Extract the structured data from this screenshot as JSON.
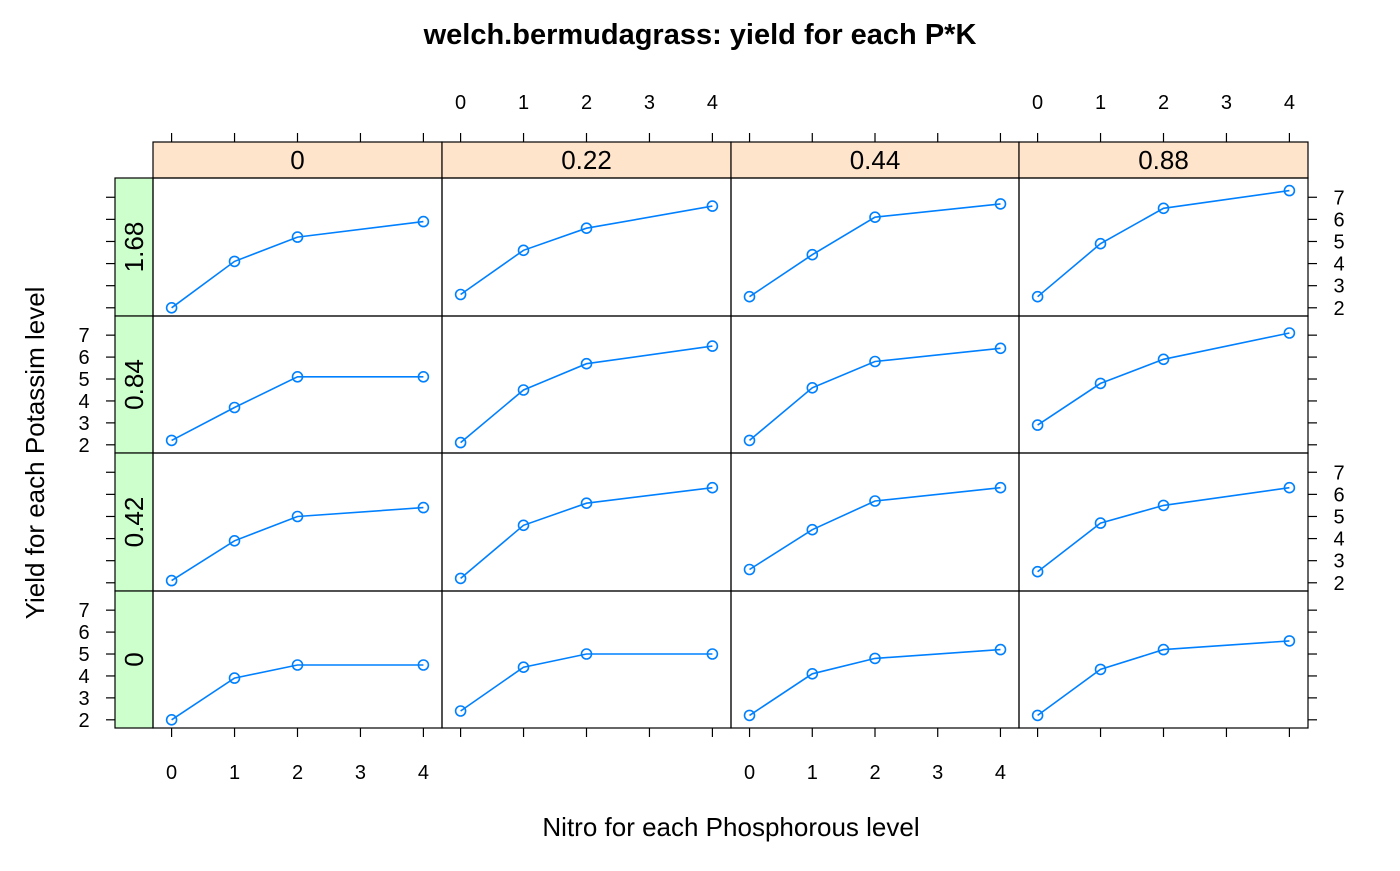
{
  "chart_data": {
    "type": "line",
    "title": "welch.bermudagrass: yield for each P*K",
    "xlabel": "Nitro for each Phosphorous level",
    "ylabel": "Yield for each Potassim level",
    "x": [
      0,
      1,
      2,
      3,
      4
    ],
    "x_ticks": [
      "0",
      "1",
      "2",
      "3",
      "4"
    ],
    "xlim": [
      -0.2,
      4.2
    ],
    "y_ticks": [
      "2",
      "3",
      "4",
      "5",
      "6",
      "7"
    ],
    "ylim": [
      1.9,
      7.6
    ],
    "phosphorous_levels": [
      "0",
      "0.22",
      "0.44",
      "0.88"
    ],
    "potassium_levels": [
      "1.68",
      "0.84",
      "0.42",
      "0"
    ],
    "strip_top_color": "#ffe4cc",
    "strip_side_color": "#ccffcc",
    "line_color": "#0080ff",
    "panels": [
      {
        "potassium": "1.68",
        "phosphorous": "0",
        "x": [
          0,
          1,
          2,
          4
        ],
        "y": [
          2.0,
          4.1,
          5.2,
          5.9
        ]
      },
      {
        "potassium": "1.68",
        "phosphorous": "0.22",
        "x": [
          0,
          1,
          2,
          4
        ],
        "y": [
          2.6,
          4.6,
          5.6,
          6.6
        ]
      },
      {
        "potassium": "1.68",
        "phosphorous": "0.44",
        "x": [
          0,
          1,
          2,
          4
        ],
        "y": [
          2.5,
          4.4,
          6.1,
          6.7
        ]
      },
      {
        "potassium": "1.68",
        "phosphorous": "0.88",
        "x": [
          0,
          1,
          2,
          4
        ],
        "y": [
          2.5,
          4.9,
          6.5,
          7.3
        ]
      },
      {
        "potassium": "0.84",
        "phosphorous": "0",
        "x": [
          0,
          1,
          2,
          4
        ],
        "y": [
          2.2,
          3.7,
          5.1,
          5.1
        ]
      },
      {
        "potassium": "0.84",
        "phosphorous": "0.22",
        "x": [
          0,
          1,
          2,
          4
        ],
        "y": [
          2.1,
          4.5,
          5.7,
          6.5
        ]
      },
      {
        "potassium": "0.84",
        "phosphorous": "0.44",
        "x": [
          0,
          1,
          2,
          4
        ],
        "y": [
          2.2,
          4.6,
          5.8,
          6.4
        ]
      },
      {
        "potassium": "0.84",
        "phosphorous": "0.88",
        "x": [
          0,
          1,
          2,
          4
        ],
        "y": [
          2.9,
          4.8,
          5.9,
          7.1
        ]
      },
      {
        "potassium": "0.42",
        "phosphorous": "0",
        "x": [
          0,
          1,
          2,
          4
        ],
        "y": [
          2.1,
          3.9,
          5.0,
          5.4
        ]
      },
      {
        "potassium": "0.42",
        "phosphorous": "0.22",
        "x": [
          0,
          1,
          2,
          4
        ],
        "y": [
          2.2,
          4.6,
          5.6,
          6.3
        ]
      },
      {
        "potassium": "0.42",
        "phosphorous": "0.44",
        "x": [
          0,
          1,
          2,
          4
        ],
        "y": [
          2.6,
          4.4,
          5.7,
          6.3
        ]
      },
      {
        "potassium": "0.42",
        "phosphorous": "0.88",
        "x": [
          0,
          1,
          2,
          4
        ],
        "y": [
          2.5,
          4.7,
          5.5,
          6.3
        ]
      },
      {
        "potassium": "0",
        "phosphorous": "0",
        "x": [
          0,
          1,
          2,
          4
        ],
        "y": [
          2.0,
          3.9,
          4.5,
          4.5
        ]
      },
      {
        "potassium": "0",
        "phosphorous": "0.22",
        "x": [
          0,
          1,
          2,
          4
        ],
        "y": [
          2.4,
          4.4,
          5.0,
          5.0
        ]
      },
      {
        "potassium": "0",
        "phosphorous": "0.44",
        "x": [
          0,
          1,
          2,
          4
        ],
        "y": [
          2.2,
          4.1,
          4.8,
          5.2
        ]
      },
      {
        "potassium": "0",
        "phosphorous": "0.88",
        "x": [
          0,
          1,
          2,
          4
        ],
        "y": [
          2.2,
          4.3,
          5.2,
          5.6
        ]
      }
    ]
  }
}
